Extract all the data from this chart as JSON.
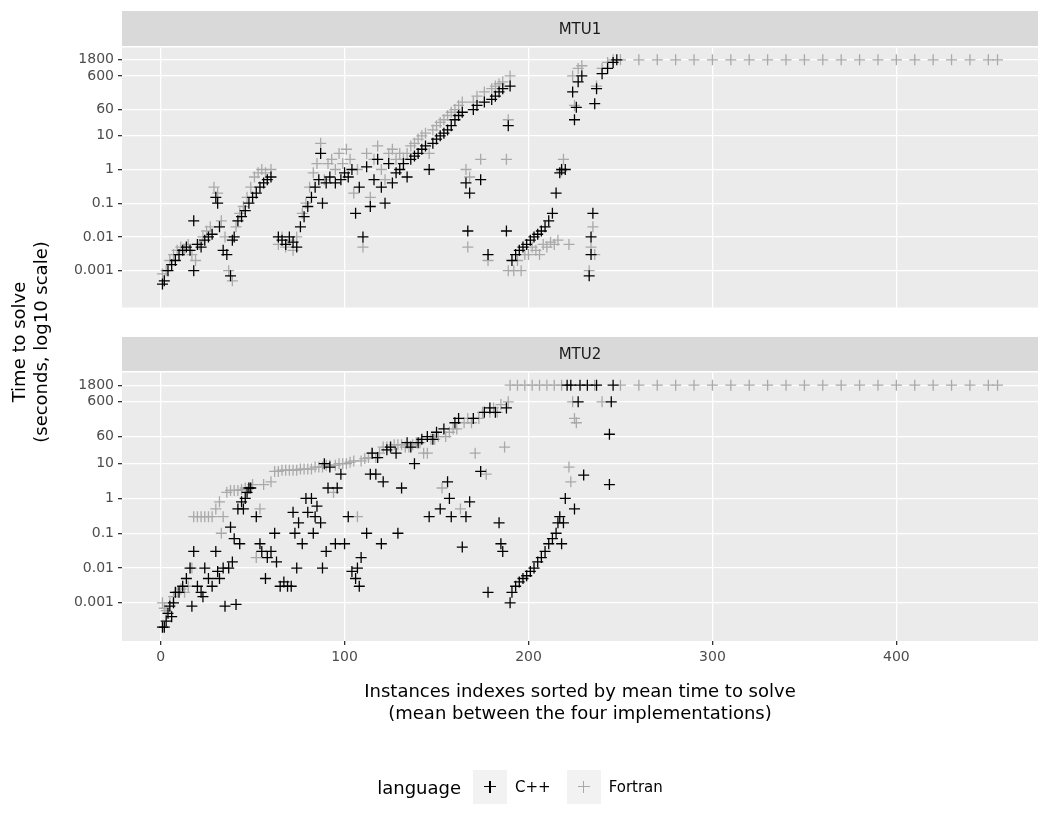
{
  "chart_data": [
    {
      "type": "scatter",
      "title": "MTU1",
      "ylabel": "Time to solve\n(seconds, log10 scale)",
      "log": "y",
      "grid": true,
      "marker": "cross",
      "tick_labels": "y",
      "xlim": [
        -21,
        477
      ],
      "xticks": [
        0,
        100,
        200,
        300,
        400
      ],
      "ylim": [
        8e-05,
        4200
      ],
      "yticks": [
        0.001,
        0.01,
        0.1,
        1,
        10,
        60,
        600,
        1800
      ],
      "series": [
        {
          "color": "#000000",
          "x": [
            1,
            2,
            4,
            6,
            8,
            10,
            12,
            14,
            16,
            18,
            18,
            20,
            22,
            24,
            26,
            28,
            30,
            31,
            32,
            34,
            36,
            38,
            39,
            40,
            42,
            44,
            46,
            48,
            50,
            52,
            54,
            56,
            58,
            60,
            64,
            66,
            68,
            70,
            72,
            74,
            76,
            78,
            80,
            82,
            84,
            86,
            87,
            88,
            90,
            92,
            95,
            98,
            100,
            102,
            104,
            106,
            108,
            110,
            112,
            114,
            116,
            118,
            120,
            122,
            124,
            126,
            128,
            130,
            132,
            134,
            136,
            138,
            140,
            142,
            144,
            146,
            148,
            150,
            152,
            154,
            156,
            158,
            160,
            162,
            164,
            166,
            167,
            168,
            170,
            172,
            174,
            176,
            178,
            180,
            182,
            184,
            186,
            188,
            189,
            190,
            191,
            193,
            195,
            197,
            199,
            201,
            203,
            205,
            207,
            209,
            211,
            213,
            215,
            217,
            218,
            220,
            224,
            225,
            226,
            227,
            229,
            233,
            234,
            234,
            235,
            236,
            237,
            240,
            243,
            246,
            248
          ],
          "values": [
            0.0004,
            0.0005,
            0.001,
            0.0015,
            0.002,
            0.003,
            0.004,
            0.005,
            0.004,
            0.03,
            0.001,
            0.006,
            0.005,
            0.008,
            0.01,
            0.012,
            0.15,
            0.1,
            0.02,
            0.004,
            0.003,
            0.0007,
            0.008,
            0.01,
            0.03,
            0.04,
            0.06,
            0.1,
            0.15,
            0.2,
            0.3,
            0.4,
            0.5,
            0.6,
            0.01,
            0.008,
            0.006,
            0.01,
            0.007,
            0.005,
            0.02,
            0.04,
            0.08,
            0.15,
            0.3,
            0.5,
            3,
            0.1,
            0.4,
            0.6,
            0.4,
            0.5,
            0.8,
            0.6,
            1,
            0.05,
            0.3,
            0.01,
            1.2,
            0.08,
            0.5,
            2,
            0.3,
            0.1,
            1.5,
            0.4,
            0.8,
            1,
            1.5,
            0.6,
            2,
            2.5,
            3,
            4,
            5,
            1,
            6,
            8,
            10,
            12,
            15,
            20,
            30,
            40,
            50,
            0.4,
            0.015,
            0.2,
            60,
            80,
            0.5,
            100,
            0.003,
            120,
            150,
            200,
            250,
            0.015,
            20,
            300,
            0.002,
            0.003,
            0.004,
            0.005,
            0.006,
            0.008,
            0.01,
            0.012,
            0.015,
            0.02,
            0.03,
            0.05,
            0.2,
            0.8,
            1,
            1,
            200,
            30,
            70,
            400,
            600,
            0.0007,
            0.003,
            0.01,
            0.05,
            90,
            250,
            700,
            1000,
            1500,
            1800
          ]
        },
        {
          "color": "#a9a9a9",
          "x": [
            1,
            3,
            5,
            7,
            9,
            11,
            13,
            15,
            17,
            19,
            21,
            23,
            25,
            27,
            29,
            31,
            33,
            35,
            37,
            39,
            41,
            43,
            45,
            47,
            49,
            51,
            53,
            55,
            57,
            60,
            64,
            66,
            68,
            70,
            72,
            74,
            77,
            79,
            81,
            83,
            85,
            87,
            89,
            91,
            93,
            95,
            97,
            99,
            101,
            103,
            105,
            107,
            110,
            112,
            114,
            116,
            118,
            120,
            122,
            124,
            126,
            128,
            130,
            132,
            134,
            136,
            138,
            140,
            142,
            144,
            146,
            148,
            150,
            152,
            154,
            156,
            158,
            160,
            162,
            164,
            166,
            167,
            168,
            170,
            172,
            174,
            176,
            178,
            180,
            182,
            184,
            186,
            188,
            189,
            190,
            189,
            192,
            194,
            196,
            198,
            200,
            202,
            204,
            206,
            208,
            210,
            212,
            214,
            216,
            218,
            219,
            222,
            224,
            225,
            227,
            229,
            233,
            234,
            235,
            236,
            237,
            240,
            243,
            246,
            250,
            260,
            270,
            280,
            290,
            300,
            310,
            320,
            330,
            340,
            350,
            360,
            370,
            380,
            390,
            400,
            410,
            420,
            430,
            440,
            450,
            455
          ],
          "values": [
            0.0008,
            0.001,
            0.002,
            0.003,
            0.004,
            0.005,
            0.004,
            0.006,
            0.003,
            0.002,
            0.006,
            0.01,
            0.015,
            0.02,
            0.3,
            0.2,
            0.03,
            0.01,
            0.001,
            0.0005,
            0.02,
            0.05,
            0.08,
            0.15,
            0.3,
            0.6,
            0.8,
            1,
            0.8,
            1,
            0.006,
            0.01,
            0.005,
            0.008,
            0.004,
            0.01,
            0.05,
            0.1,
            0.3,
            0.8,
            1.5,
            6,
            0.5,
            1.5,
            2,
            1,
            3,
            1.5,
            4,
            2,
            0.2,
            1,
            0.005,
            3,
            0.15,
            2,
            5,
            1,
            0.5,
            3,
            4,
            2,
            3,
            2,
            3,
            5,
            6,
            8,
            10,
            12,
            3,
            15,
            20,
            25,
            30,
            40,
            50,
            60,
            80,
            100,
            1,
            0.005,
            0.6,
            100,
            150,
            2,
            200,
            0.002,
            250,
            300,
            350,
            400,
            2,
            30,
            600,
            0.001,
            0.001,
            0.002,
            0.001,
            0.003,
            0.003,
            0.005,
            0.004,
            0.003,
            0.006,
            0.005,
            0.007,
            0.006,
            0.008,
            0.9,
            2,
            0.006,
            600,
            80,
            1000,
            1200,
            0.001,
            0.005,
            0.02,
            0.003,
            300,
            1000,
            1500,
            1800,
            1800,
            1800,
            1800,
            1800,
            1800,
            1800,
            1800,
            1800,
            1800,
            1800,
            1800,
            1800,
            1800,
            1800,
            1800,
            1800,
            1800,
            1800,
            1800,
            1800,
            1800,
            1800
          ]
        }
      ]
    },
    {
      "type": "scatter",
      "title": "MTU2",
      "xlabel": "Instances indexes sorted by mean time to solve\n(mean between the four implementations)",
      "log": "y",
      "grid": true,
      "marker": "cross",
      "legend": "bottom",
      "legend_title": "language",
      "xlim": [
        -21,
        477
      ],
      "xticks": [
        0,
        100,
        200,
        300,
        400
      ],
      "ylim": [
        8e-05,
        4200
      ],
      "yticks": [
        0.001,
        0.01,
        0.1,
        1,
        10,
        60,
        600,
        1800
      ],
      "series": [
        {
          "name": "C++",
          "color": "#000000",
          "x": [
            1,
            2,
            3,
            4,
            5,
            6,
            7,
            8,
            10,
            12,
            14,
            16,
            17,
            18,
            20,
            22,
            23,
            24,
            26,
            28,
            30,
            31,
            32,
            34,
            35,
            37,
            38,
            39,
            40,
            41,
            42,
            43,
            44,
            45,
            46,
            47,
            48,
            49,
            52,
            54,
            55,
            57,
            58,
            60,
            62,
            63,
            65,
            67,
            69,
            71,
            72,
            73,
            74,
            75,
            77,
            79,
            80,
            82,
            83,
            84,
            85,
            87,
            88,
            89,
            90,
            91,
            92,
            95,
            96,
            98,
            100,
            102,
            104,
            106,
            107,
            108,
            109,
            112,
            114,
            115,
            117,
            118,
            120,
            121,
            123,
            125,
            128,
            129,
            131,
            134,
            136,
            138,
            140,
            142,
            145,
            146,
            148,
            150,
            152,
            154,
            156,
            157,
            158,
            160,
            162,
            164,
            166,
            168,
            170,
            174,
            176,
            178,
            179,
            182,
            184,
            185,
            186,
            188,
            190,
            191,
            193,
            195,
            197,
            199,
            201,
            203,
            205,
            207,
            209,
            211,
            213,
            215,
            216,
            217,
            218,
            219,
            220,
            221,
            223,
            225,
            227,
            228,
            230,
            232,
            237,
            244,
            244,
            245,
            246
          ],
          "values": [
            0.0002,
            0.0002,
            0.0003,
            0.0005,
            0.0008,
            0.0004,
            0.001,
            0.002,
            0.002,
            0.003,
            0.005,
            0.01,
            0.0008,
            0.03,
            0.003,
            0.002,
            0.0015,
            0.01,
            0.005,
            0.003,
            0.03,
            0.008,
            0.005,
            0.01,
            0.0008,
            0.01,
            0.15,
            0.015,
            0.07,
            0.0009,
            0.5,
            0.05,
            0.8,
            0.5,
            1,
            1.5,
            2,
            2,
            0.3,
            0.05,
            0.03,
            0.005,
            0.02,
            0.03,
            0.1,
            0.015,
            0.003,
            0.004,
            0.003,
            0.003,
            0.4,
            0.1,
            0.01,
            0.2,
            0.05,
            1,
            0.4,
            1,
            0.1,
            0.3,
            0.6,
            0.2,
            0.01,
            10,
            0.03,
            2,
            8,
            0.05,
            2,
            5,
            0.05,
            0.3,
            0.008,
            0.005,
            0.01,
            0.003,
            0.02,
            0.1,
            5,
            20,
            5,
            15,
            0.05,
            3,
            25,
            30,
            20,
            0.1,
            2,
            40,
            30,
            10,
            40,
            50,
            60,
            0.3,
            50,
            80,
            0.5,
            100,
            3,
            1,
            0.3,
            150,
            200,
            0.04,
            0.3,
            0.8,
            200,
            6,
            300,
            0.002,
            400,
            300,
            0.2,
            0.05,
            0.03,
            400,
            0.001,
            0.002,
            0.003,
            0.004,
            0.005,
            0.006,
            0.008,
            0.01,
            0.015,
            0.02,
            0.03,
            0.05,
            0.07,
            0.1,
            0.2,
            0.3,
            0.05,
            0.2,
            1,
            1800,
            1800,
            0.5,
            600,
            1800,
            4.7,
            1800,
            1800,
            70,
            2.5,
            600,
            1800
          ]
        },
        {
          "name": "Fortran",
          "color": "#a9a9a9",
          "x": [
            1,
            2,
            3,
            5,
            7,
            9,
            11,
            13,
            15,
            17,
            18,
            20,
            22,
            24,
            26,
            28,
            30,
            32,
            33,
            34,
            36,
            38,
            40,
            42,
            44,
            46,
            48,
            50,
            52,
            54,
            56,
            60,
            62,
            64,
            66,
            68,
            70,
            72,
            74,
            76,
            78,
            80,
            82,
            84,
            86,
            88,
            90,
            92,
            94,
            95,
            97,
            99,
            101,
            103,
            105,
            107,
            109,
            111,
            113,
            115,
            117,
            119,
            121,
            123,
            125,
            127,
            129,
            131,
            133,
            135,
            137,
            139,
            141,
            143,
            145,
            147,
            149,
            151,
            153,
            155,
            157,
            159,
            161,
            163,
            165,
            167,
            169,
            171,
            173,
            175,
            177,
            179,
            181,
            183,
            185,
            187,
            189,
            190,
            194,
            198,
            202,
            206,
            210,
            214,
            218,
            222,
            223,
            224,
            225,
            226,
            236,
            240,
            250,
            260,
            270,
            280,
            290,
            300,
            310,
            320,
            330,
            340,
            350,
            360,
            370,
            380,
            390,
            400,
            410,
            420,
            430,
            440,
            450,
            455
          ],
          "values": [
            0.001,
            0.0007,
            0.0006,
            0.001,
            0.0015,
            0.002,
            0.0025,
            0.002,
            0.003,
            0.01,
            0.3,
            0.3,
            0.3,
            0.3,
            0.3,
            0.3,
            0.5,
            0.8,
            0.1,
            0.3,
            1.5,
            1.7,
            1.7,
            1.7,
            1.8,
            2,
            2,
            2.5,
            0.02,
            0.5,
            2.5,
            3,
            6,
            6,
            6.5,
            6.5,
            6.5,
            6.5,
            6.5,
            7,
            7,
            7,
            7,
            8,
            8,
            8,
            9,
            9,
            1.5,
            9,
            10,
            10,
            10,
            11,
            12,
            0.3,
            12,
            14,
            15,
            20,
            15,
            20,
            30,
            30,
            30,
            35,
            35,
            35,
            30,
            30,
            35,
            40,
            40,
            20,
            20,
            50,
            50,
            60,
            2,
            60,
            80,
            100,
            100,
            0.5,
            150,
            200,
            150,
            20,
            200,
            300,
            5,
            300,
            400,
            300,
            500,
            30,
            600,
            1800,
            1800,
            1800,
            1800,
            1800,
            1800,
            1800,
            1800,
            8,
            3,
            600,
            200,
            150,
            1800,
            600,
            1800,
            1800,
            1800,
            1800,
            1800,
            1800,
            1800,
            1800,
            1800,
            1800,
            1800,
            1800,
            1800,
            1800,
            1800,
            1800,
            1800,
            1800,
            1800,
            1800,
            1800,
            1800
          ]
        }
      ]
    }
  ]
}
